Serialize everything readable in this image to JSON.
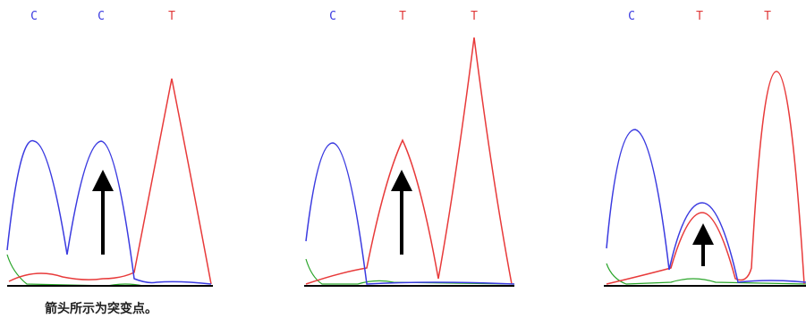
{
  "panels": [
    {
      "bases": [
        "C",
        "C",
        "T"
      ]
    },
    {
      "bases": [
        "C",
        "T",
        "T"
      ]
    },
    {
      "bases": [
        "C",
        "T",
        "T"
      ]
    }
  ],
  "caption": "箭头所示为突变点。"
}
